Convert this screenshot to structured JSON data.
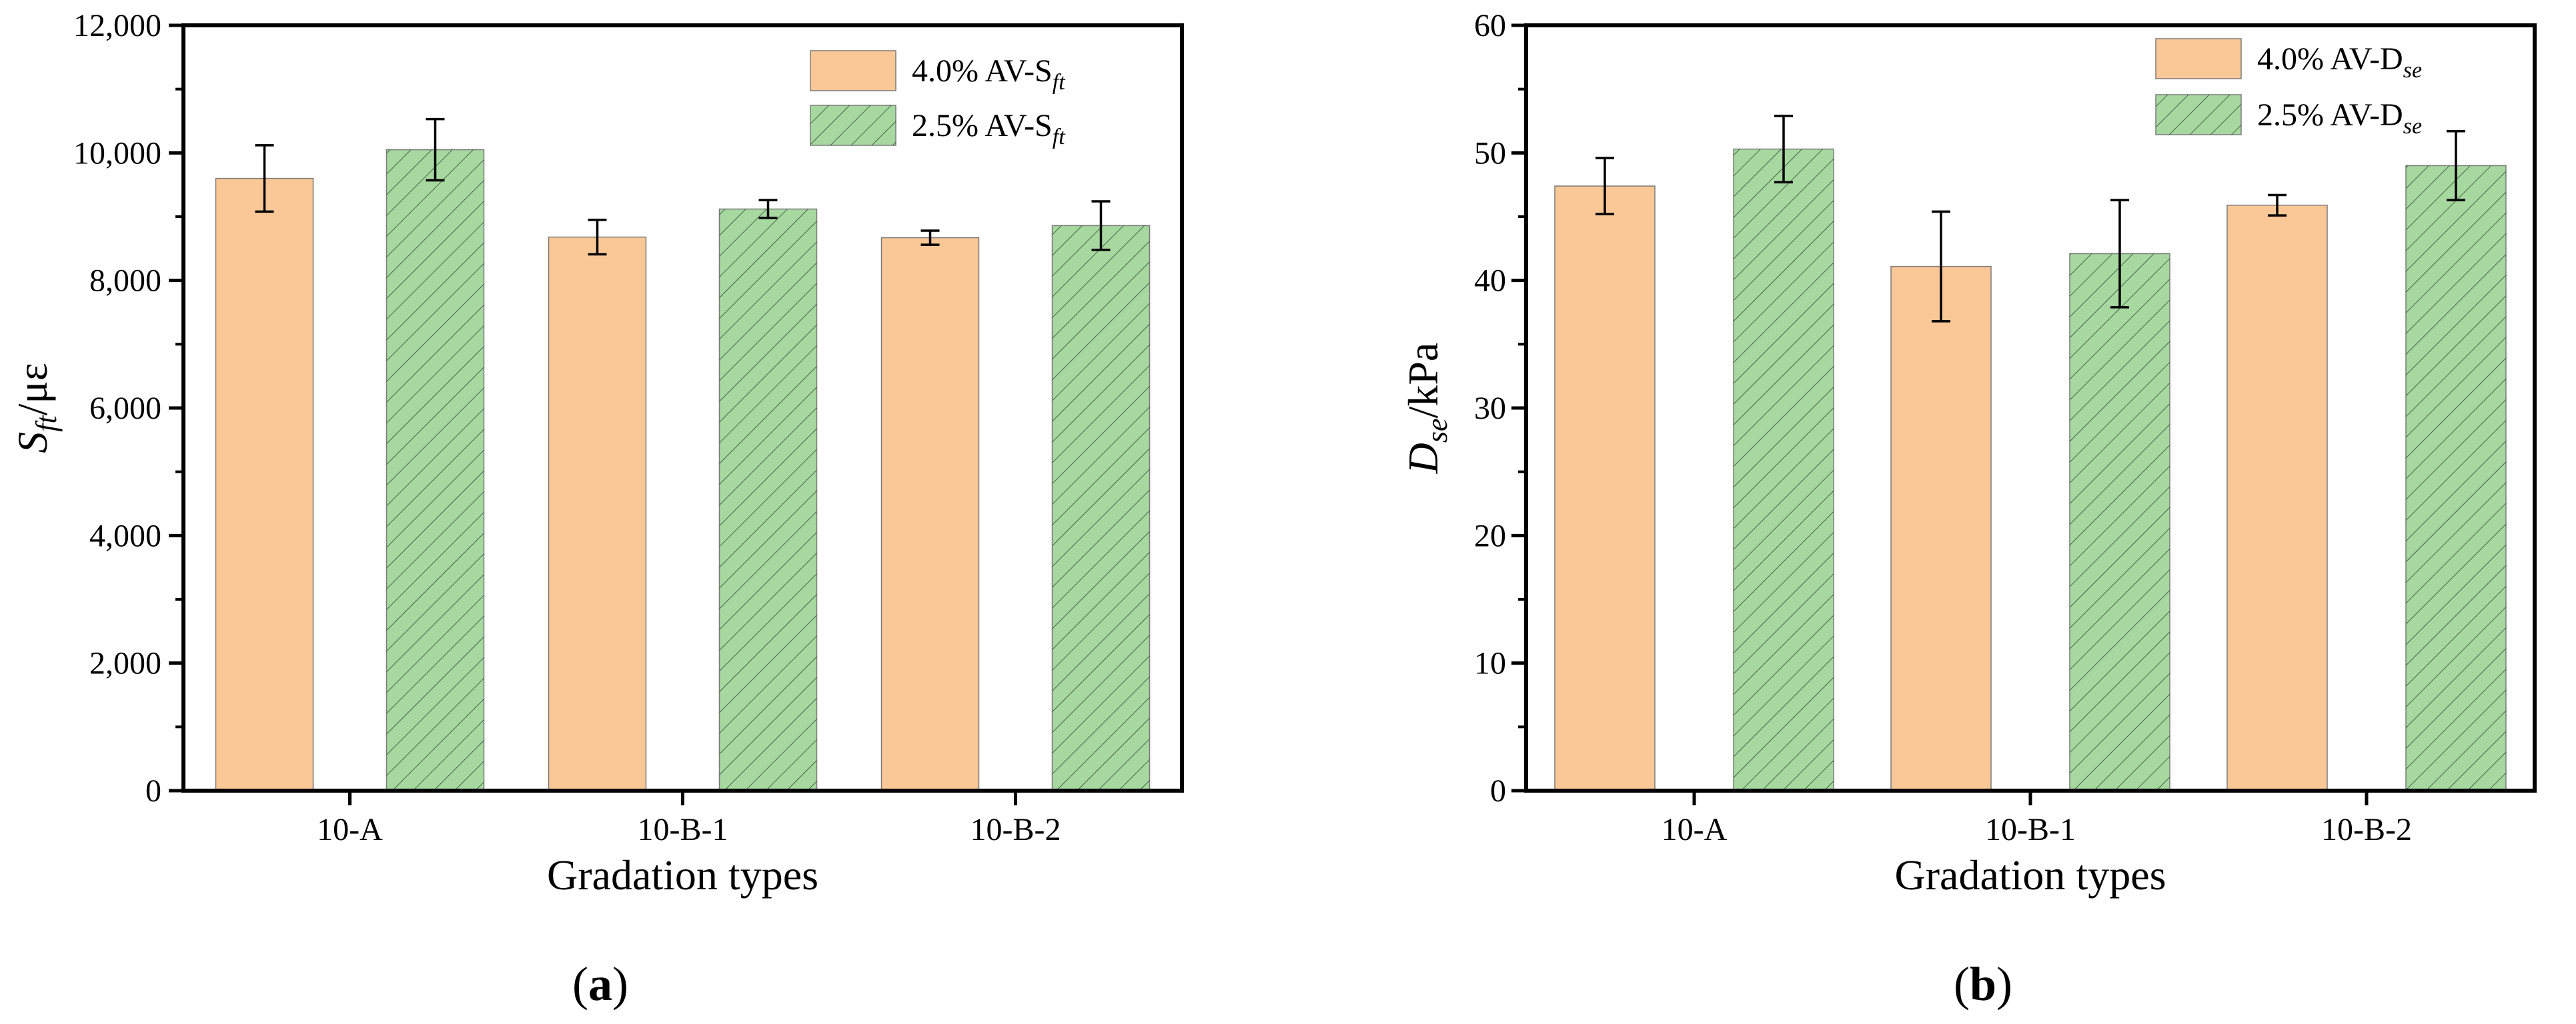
{
  "chart_data": [
    {
      "type": "bar",
      "panel_label": "a",
      "categories": [
        "10-A",
        "10-B-1",
        "10-B-2"
      ],
      "series": [
        {
          "name": "4.0% AV-S",
          "name_sub": "ft",
          "color": "#fac796",
          "pattern": "none",
          "values": [
            9600,
            8680,
            8670
          ],
          "errors": [
            520,
            270,
            110
          ]
        },
        {
          "name": "2.5% AV-S",
          "name_sub": "ft",
          "color": "#a6d8a0",
          "pattern": "diagonal-hatch",
          "values": [
            10050,
            9120,
            8860
          ],
          "errors": [
            480,
            140,
            380
          ]
        }
      ],
      "xlabel": "Gradation types",
      "ylabel": "S",
      "ylabel_sub": "ft",
      "ylabel_unit": "/με",
      "ylim": [
        0,
        12000
      ],
      "yticks": [
        0,
        2000,
        4000,
        6000,
        8000,
        10000,
        12000
      ],
      "ytick_labels": [
        "0",
        "2,000",
        "4,000",
        "6,000",
        "8,000",
        "10,000",
        "12,000"
      ],
      "grid": false,
      "legend_position": "top-right"
    },
    {
      "type": "bar",
      "panel_label": "b",
      "categories": [
        "10-A",
        "10-B-1",
        "10-B-2"
      ],
      "series": [
        {
          "name": "4.0%  AV-D",
          "name_sub": "se",
          "color": "#fac796",
          "pattern": "none",
          "values": [
            47.4,
            41.1,
            45.9
          ],
          "errors": [
            2.2,
            4.3,
            0.8
          ]
        },
        {
          "name": "2.5% AV-D",
          "name_sub": "se",
          "color": "#a6d8a0",
          "pattern": "diagonal-hatch",
          "values": [
            50.3,
            42.1,
            49.0
          ],
          "errors": [
            2.6,
            4.2,
            2.7
          ]
        }
      ],
      "xlabel": "Gradation types",
      "ylabel": "D",
      "ylabel_sub": "se",
      "ylabel_unit": "/kPa",
      "ylim": [
        0,
        60
      ],
      "yticks": [
        0,
        10,
        20,
        30,
        40,
        50,
        60
      ],
      "ytick_labels": [
        "0",
        "10",
        "20",
        "30",
        "40",
        "50",
        "60"
      ],
      "grid": false,
      "legend_position": "top-right"
    }
  ]
}
